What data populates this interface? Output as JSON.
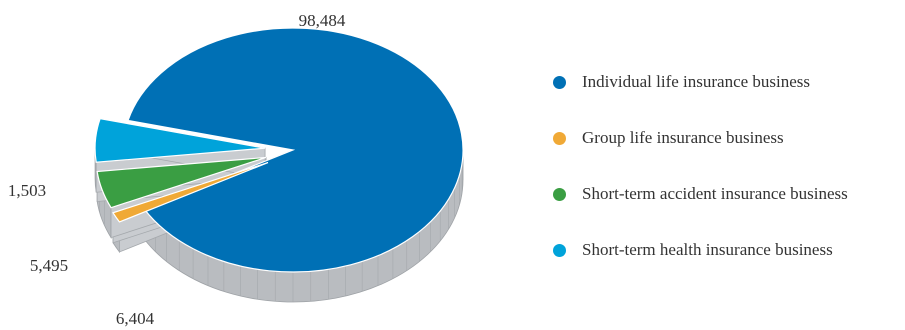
{
  "chart_data": {
    "type": "pie",
    "categories": [
      "Individual life insurance business",
      "Group life insurance business",
      "Short-term accident insurance business",
      "Short-term health insurance business"
    ],
    "values": [
      98484,
      1503,
      5495,
      6404
    ],
    "value_labels": [
      "98,484",
      "1,503",
      "5,495",
      "6,404"
    ],
    "colors": [
      "#0070b5",
      "#f0a936",
      "#3a9e43",
      "#00a3da"
    ],
    "legend_position": "right",
    "style": "3D exploded pie"
  }
}
